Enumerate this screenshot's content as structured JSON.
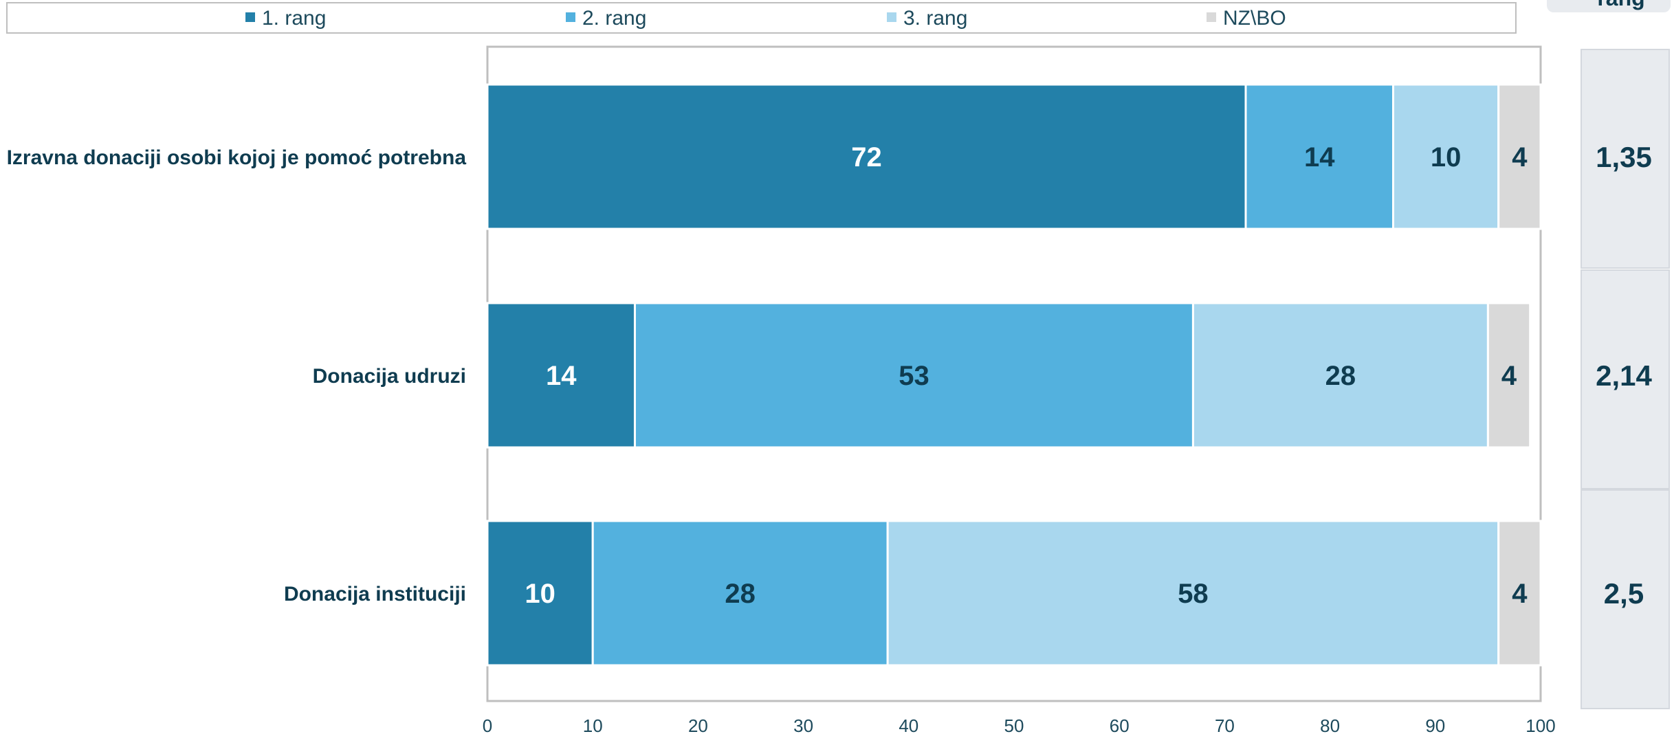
{
  "chart_data": {
    "type": "bar",
    "orientation": "horizontal",
    "stacked": true,
    "categories": [
      "Izravna donaciji osobi kojoj je pomoć potrebna",
      "Donacija udruzi",
      "Donacija instituciji"
    ],
    "series": [
      {
        "name": "1. rang",
        "values": [
          72,
          14,
          10
        ],
        "color": "#2380a9",
        "label_color": "#ffffff"
      },
      {
        "name": "2. rang",
        "values": [
          14,
          53,
          28
        ],
        "color": "#53b1de",
        "label_color": "#0f3c50"
      },
      {
        "name": "3. rang",
        "values": [
          10,
          28,
          58
        ],
        "color": "#a9d7ee",
        "label_color": "#0f3c50"
      },
      {
        "name": "NZ\\BO",
        "values": [
          4,
          4,
          4
        ],
        "color": "#d9d9d9",
        "label_color": "#0f3c50"
      }
    ],
    "xlim": [
      0,
      100
    ],
    "xticks": [
      0,
      10,
      20,
      30,
      40,
      50,
      60,
      70,
      80,
      90,
      100
    ],
    "legend_position": "top",
    "side_panel": {
      "header": "rang",
      "values": [
        "1,35",
        "2,14",
        "2,5"
      ],
      "background": "#e8ebef"
    }
  }
}
